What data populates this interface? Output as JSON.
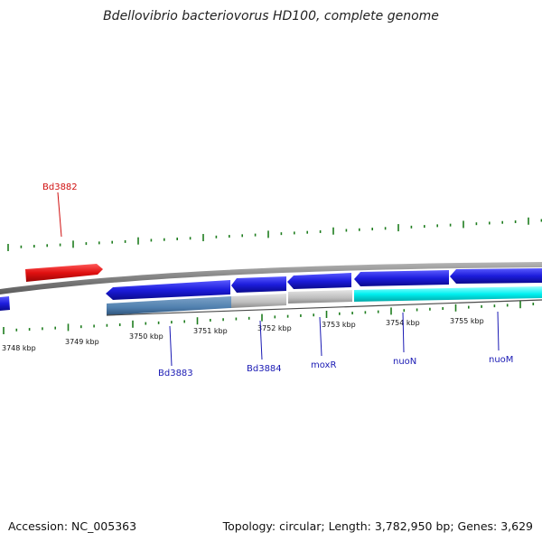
{
  "title": "Bdellovibrio bacteriovorus HD100, complete genome",
  "footer": {
    "accession": "Accession: NC_005363",
    "summary": "Topology: circular; Length: 3,782,950 bp; Genes: 3,629"
  },
  "colors": {
    "backbone": "#8c8c8c",
    "tick": "#1e7d1e",
    "forward_gene": "#e01010",
    "reverse_gene": "#1c1cdc",
    "nuo_highlight": "#00f0f0",
    "cog_blue": "#4f7fae",
    "cog_grey": "#bdbdbd",
    "gene_label": "#1a1ab4",
    "forward_label": "#d01010"
  },
  "scale_labels": [
    "3748 kbp",
    "3749 kbp",
    "3750 kbp",
    "3751 kbp",
    "3752 kbp",
    "3753 kbp",
    "3754 kbp",
    "3755 kbp"
  ],
  "genes": {
    "forward": [
      {
        "name": "Bd3882"
      }
    ],
    "reverse": [
      {
        "name": "Bd3883"
      },
      {
        "name": "Bd3884"
      },
      {
        "name": "moxR"
      },
      {
        "name": "nuoN"
      },
      {
        "name": "nuoM"
      }
    ]
  }
}
